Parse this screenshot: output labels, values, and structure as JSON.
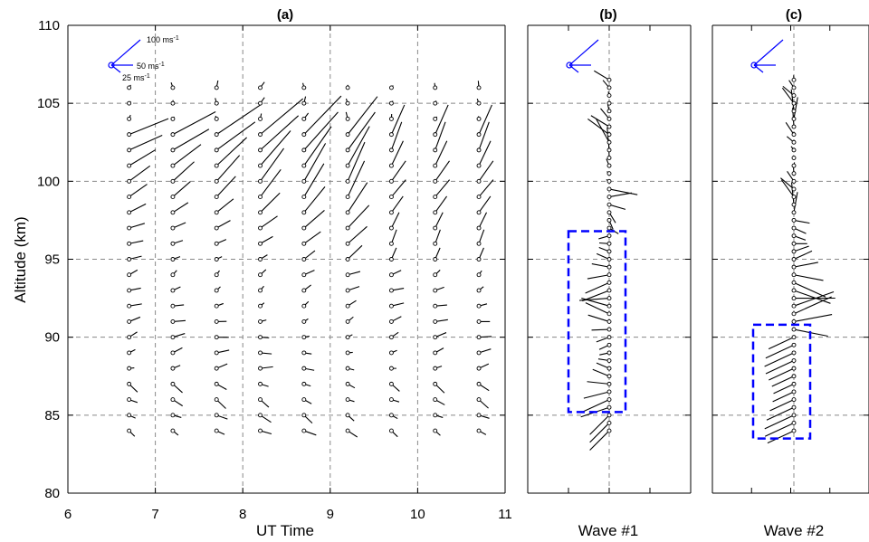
{
  "chart_data": {
    "type": "wind-hodograph-stickplot",
    "y_axis": {
      "label": "Altitude (km)",
      "range": [
        80,
        110
      ],
      "ticks": [
        80,
        85,
        90,
        95,
        100,
        105,
        110
      ]
    },
    "legend": {
      "labels": [
        "100 ms",
        "50 ms",
        "25 ms"
      ],
      "superscript": "-1",
      "color": "#0000ff",
      "placement": "top-left"
    },
    "panels": [
      {
        "id": "a",
        "title": "(a)",
        "xlabel": "UT Time",
        "x_range": [
          6,
          11
        ],
        "x_ticks": [
          6,
          7,
          8,
          9,
          10,
          11
        ],
        "grid_x": [
          7,
          8,
          9,
          10
        ],
        "grid_y": [
          85,
          90,
          95,
          100,
          105
        ],
        "profile_times": [
          6.7,
          7.2,
          7.7,
          8.2,
          8.7,
          9.2,
          9.7,
          10.2,
          10.7
        ],
        "altitudes_km": [
          84,
          85,
          86,
          87,
          88,
          89,
          90,
          91,
          92,
          93,
          94,
          95,
          96,
          97,
          98,
          99,
          100,
          101,
          102,
          103,
          104,
          105,
          106
        ],
        "vector_note": "wind direction in degrees counterclockwise from east; magnitude in m/s"
      },
      {
        "id": "b",
        "title": "(b)",
        "xlabel": "Wave #1",
        "grid_x": [
          0
        ],
        "grid_y": [
          85,
          90,
          95,
          100,
          105
        ],
        "highlight_box_km": [
          85.2,
          96.8
        ],
        "box_color": "#0000ff"
      },
      {
        "id": "c",
        "title": "(c)",
        "xlabel": "Wave #2",
        "grid_x": [
          0
        ],
        "grid_y": [
          85,
          90,
          95,
          100,
          105
        ],
        "highlight_box_km": [
          83.5,
          90.8
        ],
        "box_color": "#0000ff"
      }
    ]
  }
}
